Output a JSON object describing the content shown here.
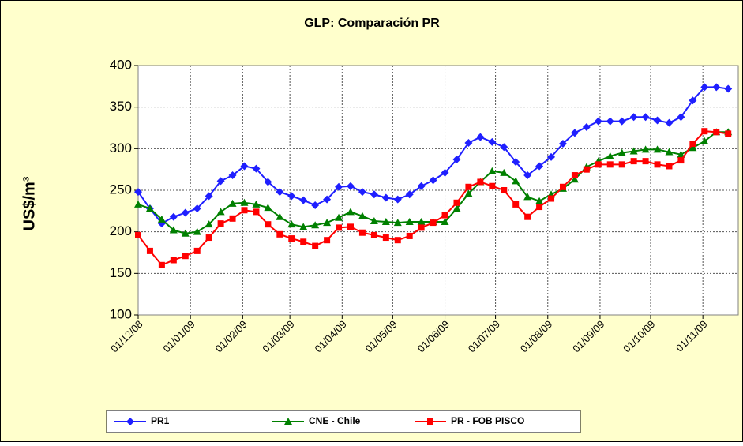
{
  "chart_data": {
    "type": "line",
    "title": "GLP: Comparación PR",
    "y_label": "US$/m³",
    "x": [
      "01/12/08",
      "08/12/08",
      "15/12/08",
      "22/12/08",
      "29/12/08",
      "05/01/09",
      "12/01/09",
      "19/01/09",
      "26/01/09",
      "02/02/09",
      "09/02/09",
      "16/02/09",
      "23/02/09",
      "02/03/09",
      "09/03/09",
      "16/03/09",
      "23/03/09",
      "30/03/09",
      "06/04/09",
      "13/04/09",
      "20/04/09",
      "27/04/09",
      "04/05/09",
      "11/05/09",
      "18/05/09",
      "25/05/09",
      "01/06/09",
      "08/06/09",
      "15/06/09",
      "22/06/09",
      "29/06/09",
      "06/07/09",
      "13/07/09",
      "20/07/09",
      "27/07/09",
      "03/08/09",
      "10/08/09",
      "17/08/09",
      "24/08/09",
      "31/08/09",
      "07/09/09",
      "14/09/09",
      "21/09/09",
      "28/09/09",
      "05/10/09",
      "12/10/09",
      "19/10/09",
      "26/10/09",
      "02/11/09",
      "09/11/09",
      "16/11/09"
    ],
    "series": [
      {
        "name": "PR1",
        "color": "#1f1fff",
        "marker": "diamond",
        "values": [
          248,
          228,
          210,
          218,
          223,
          228,
          243,
          261,
          268,
          279,
          276,
          260,
          248,
          243,
          238,
          232,
          239,
          254,
          255,
          248,
          245,
          241,
          239,
          245,
          255,
          262,
          271,
          287,
          307,
          314,
          308,
          302,
          284,
          268,
          279,
          290,
          306,
          319,
          326,
          333,
          333,
          333,
          338,
          338,
          334,
          331,
          338,
          358,
          374,
          374,
          372
        ]
      },
      {
        "name": "CNE - Chile",
        "color": "#008000",
        "marker": "triangle",
        "values": [
          233,
          228,
          215,
          202,
          198,
          200,
          209,
          224,
          234,
          235,
          233,
          229,
          218,
          209,
          206,
          208,
          211,
          217,
          224,
          219,
          213,
          212,
          211,
          212,
          212,
          212,
          212,
          228,
          246,
          260,
          273,
          271,
          261,
          242,
          237,
          245,
          252,
          263,
          278,
          285,
          291,
          295,
          297,
          299,
          299,
          296,
          293,
          301,
          309,
          320,
          320
        ]
      },
      {
        "name": "PR - FOB PISCO",
        "color": "#ff0000",
        "marker": "square",
        "values": [
          196,
          177,
          160,
          166,
          171,
          177,
          193,
          210,
          216,
          226,
          224,
          209,
          197,
          192,
          188,
          183,
          190,
          205,
          206,
          199,
          196,
          193,
          190,
          195,
          205,
          211,
          220,
          235,
          254,
          260,
          255,
          250,
          233,
          218,
          230,
          240,
          254,
          268,
          275,
          281,
          281,
          281,
          285,
          285,
          281,
          279,
          286,
          306,
          321,
          320,
          318
        ]
      }
    ],
    "xlim": [
      "01/12/08",
      "22/11/09"
    ],
    "xticks": [
      "01/12/08",
      "01/01/09",
      "01/02/09",
      "01/03/09",
      "01/04/09",
      "01/05/09",
      "01/06/09",
      "01/07/09",
      "01/08/09",
      "01/09/09",
      "01/10/09",
      "01/11/09"
    ],
    "ylim": [
      100,
      400
    ],
    "yticks": [
      100,
      150,
      200,
      250,
      300,
      350,
      400
    ],
    "grid": true,
    "legend": "bottom"
  }
}
